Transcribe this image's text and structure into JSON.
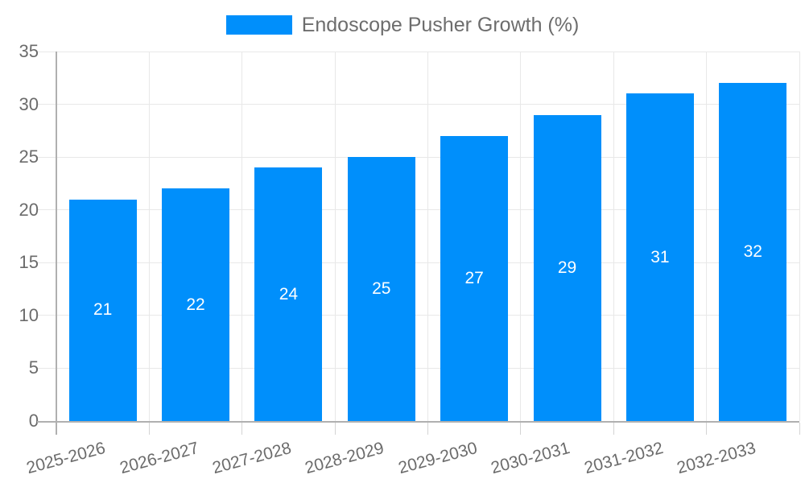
{
  "legend": {
    "label": "Endoscope Pusher Growth (%)"
  },
  "chart_data": {
    "type": "bar",
    "title": "Endoscope Pusher Growth (%)",
    "categories": [
      "2025-2026",
      "2026-2027",
      "2027-2028",
      "2028-2029",
      "2029-2030",
      "2030-2031",
      "2031-2032",
      "2032-2033"
    ],
    "series": [
      {
        "name": "Endoscope Pusher Growth (%)",
        "values": [
          21,
          22,
          24,
          25,
          27,
          29,
          31,
          32
        ]
      }
    ],
    "datalabels": [
      "21",
      "22",
      "24",
      "25",
      "27",
      "29",
      "31",
      "32"
    ],
    "xlabel": "",
    "ylabel": "",
    "ylim": [
      0,
      35
    ],
    "yticks": [
      0,
      5,
      10,
      15,
      20,
      25,
      30,
      35
    ],
    "grid": "horizontal-and-vertical",
    "legend_position": "top-center",
    "bar_color": "#008FFB",
    "datalabel_color": "#ffffff",
    "axis_text_color": "#6b6b6b",
    "gridline_color": "#e8e8e8",
    "axis_line_color": "#b0b0b0",
    "background_color": "#ffffff"
  }
}
